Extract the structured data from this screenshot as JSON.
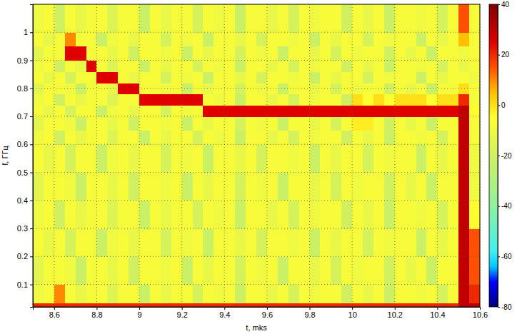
{
  "chart_data": {
    "type": "heatmap",
    "x_label": "t, mks",
    "y_label": "f, ГГц",
    "xlim": [
      8.5,
      10.6
    ],
    "ylim": [
      0.02,
      1.1
    ],
    "xticks": [
      8.6,
      8.8,
      9,
      9.2,
      9.4,
      9.6,
      9.8,
      10,
      10.2,
      10.4,
      10.6
    ],
    "yticks": [
      0.1,
      0.2,
      0.3,
      0.4,
      0.5,
      0.6,
      0.7,
      0.8,
      0.9,
      1
    ],
    "grid": true,
    "x_edges": [
      8.5,
      8.55,
      8.6,
      8.65,
      8.7,
      8.75,
      8.8,
      8.85,
      8.9,
      8.95,
      9,
      9.05,
      9.1,
      9.15,
      9.2,
      9.25,
      9.3,
      9.35,
      9.4,
      9.45,
      9.5,
      9.55,
      9.6,
      9.65,
      9.7,
      9.75,
      9.8,
      9.85,
      9.9,
      9.95,
      10,
      10.05,
      10.1,
      10.15,
      10.2,
      10.25,
      10.3,
      10.35,
      10.4,
      10.45,
      10.5,
      10.55,
      10.6
    ],
    "y_edges": [
      0.02,
      0.035,
      0.1,
      0.2,
      0.3,
      0.4,
      0.5,
      0.6,
      0.65,
      0.7,
      0.74,
      0.78,
      0.82,
      0.86,
      0.9,
      0.95,
      1,
      1.1
    ],
    "cells": [
      [
        20,
        20,
        20,
        20,
        20,
        20,
        20,
        20,
        20,
        20,
        20,
        20,
        20,
        20,
        20,
        20,
        20,
        20,
        20,
        20,
        20,
        20,
        20,
        20,
        20,
        20,
        20,
        20,
        20,
        20,
        20,
        20,
        20,
        20,
        20,
        20,
        20,
        20,
        20,
        20,
        30,
        30
      ],
      [
        -10,
        -8,
        10,
        -8,
        -12,
        -8,
        -8,
        -16,
        -8,
        -8,
        -22,
        -8,
        -12,
        -8,
        -8,
        -18,
        -8,
        -10,
        -8,
        -22,
        -8,
        -8,
        -12,
        -8,
        -18,
        -8,
        -10,
        -8,
        -8,
        -20,
        -8,
        -12,
        -8,
        -22,
        -8,
        -8,
        -10,
        -8,
        -18,
        -8,
        30,
        20
      ],
      [
        -14,
        -8,
        -8,
        -10,
        -22,
        -8,
        -8,
        -12,
        -8,
        -20,
        -8,
        -8,
        -10,
        -8,
        -22,
        -8,
        -12,
        -8,
        -8,
        -18,
        -8,
        -10,
        -8,
        -22,
        -8,
        -8,
        -12,
        -8,
        -18,
        -8,
        -10,
        -8,
        -8,
        -20,
        -8,
        -12,
        -8,
        -22,
        -8,
        -8,
        30,
        15
      ],
      [
        -8,
        -12,
        -8,
        -18,
        -8,
        -8,
        -22,
        -10,
        -8,
        -12,
        -8,
        -8,
        -18,
        -8,
        -10,
        -8,
        -22,
        -8,
        -8,
        -12,
        -8,
        -18,
        -8,
        -8,
        -10,
        -8,
        -22,
        -8,
        -12,
        -8,
        -8,
        -18,
        -8,
        -10,
        -8,
        -8,
        -22,
        -8,
        -12,
        -8,
        30,
        15
      ],
      [
        -10,
        -8,
        -20,
        -8,
        -12,
        -8,
        -8,
        -16,
        -8,
        -8,
        -22,
        -8,
        -12,
        -8,
        -8,
        -18,
        -8,
        -10,
        -8,
        -22,
        -8,
        -8,
        -12,
        -8,
        -18,
        -8,
        -10,
        -8,
        -8,
        -20,
        -8,
        -12,
        -8,
        -22,
        -8,
        -8,
        -10,
        -8,
        -18,
        -8,
        30,
        -5
      ],
      [
        -14,
        -8,
        -8,
        -10,
        -22,
        -8,
        -8,
        -12,
        -8,
        -20,
        -8,
        -8,
        -10,
        -8,
        -22,
        -8,
        -12,
        -8,
        -8,
        -18,
        -8,
        -10,
        -8,
        -22,
        -8,
        -8,
        -12,
        -8,
        -18,
        -8,
        -10,
        -8,
        -8,
        -20,
        -8,
        -12,
        -8,
        -22,
        -8,
        -8,
        30,
        -10
      ],
      [
        -8,
        -12,
        -8,
        -18,
        -8,
        -8,
        -22,
        -10,
        -8,
        -12,
        -8,
        -8,
        -18,
        -8,
        -10,
        -8,
        -22,
        -8,
        -8,
        -12,
        -8,
        -18,
        -8,
        -8,
        -10,
        -8,
        -22,
        -8,
        -12,
        -8,
        -8,
        -18,
        -8,
        -10,
        -8,
        -8,
        -22,
        -8,
        -12,
        -8,
        30,
        -10
      ],
      [
        -10,
        -8,
        -20,
        -8,
        -12,
        -8,
        -8,
        -16,
        -8,
        -8,
        -22,
        -8,
        -12,
        -8,
        -8,
        -18,
        -8,
        -10,
        -8,
        -22,
        -8,
        -8,
        -12,
        -8,
        -18,
        -8,
        -10,
        -8,
        -8,
        -20,
        -8,
        -12,
        -8,
        -22,
        -8,
        -8,
        -10,
        -8,
        -18,
        -8,
        30,
        -8
      ],
      [
        -14,
        -8,
        -8,
        -10,
        -22,
        -8,
        -8,
        -12,
        -8,
        -20,
        -8,
        -8,
        -10,
        -8,
        -22,
        -8,
        -12,
        -8,
        -8,
        -18,
        -8,
        -10,
        -8,
        -22,
        -8,
        -8,
        -12,
        -8,
        -18,
        -8,
        -2,
        -2,
        -8,
        -20,
        -8,
        -12,
        -8,
        -22,
        -8,
        -8,
        30,
        -8
      ],
      [
        -8,
        -12,
        -8,
        -18,
        -8,
        -8,
        -22,
        -10,
        -8,
        -12,
        -8,
        -8,
        -18,
        -8,
        -10,
        -8,
        25,
        25,
        25,
        25,
        25,
        25,
        25,
        25,
        25,
        25,
        25,
        25,
        25,
        25,
        25,
        25,
        25,
        25,
        25,
        25,
        25,
        25,
        25,
        25,
        30,
        -5
      ],
      [
        -10,
        -8,
        -20,
        -8,
        -12,
        -8,
        -8,
        -16,
        -8,
        -8,
        25,
        25,
        25,
        25,
        25,
        25,
        -8,
        -10,
        -8,
        -22,
        -8,
        -8,
        -12,
        -8,
        -18,
        -8,
        -10,
        -8,
        -8,
        -20,
        0,
        -5,
        0,
        -5,
        0,
        0,
        0,
        -5,
        0,
        0,
        20,
        -8
      ],
      [
        -14,
        -8,
        -8,
        -10,
        -22,
        -8,
        -8,
        -12,
        25,
        25,
        -8,
        -8,
        -10,
        -8,
        -22,
        -8,
        -12,
        -8,
        -8,
        -18,
        -8,
        -10,
        -8,
        -22,
        -8,
        -8,
        -12,
        -8,
        -18,
        -8,
        -10,
        -8,
        -8,
        -20,
        -8,
        -12,
        -8,
        -22,
        -8,
        -8,
        0,
        -8
      ],
      [
        -8,
        -12,
        -8,
        -18,
        -8,
        -8,
        25,
        25,
        -8,
        -12,
        -8,
        -8,
        -18,
        -8,
        -10,
        -8,
        -22,
        -8,
        -8,
        -12,
        -8,
        -18,
        -8,
        -8,
        -10,
        -8,
        -22,
        -8,
        -12,
        -8,
        -8,
        -18,
        -8,
        -10,
        -8,
        -8,
        -22,
        -8,
        -12,
        -8,
        -8,
        -10
      ],
      [
        -10,
        -8,
        -20,
        -8,
        -12,
        25,
        -8,
        -16,
        -8,
        -8,
        -22,
        -8,
        -12,
        -8,
        -8,
        -18,
        -8,
        -10,
        -8,
        -22,
        -8,
        -8,
        -12,
        -8,
        -18,
        -8,
        -10,
        -8,
        -8,
        -20,
        -8,
        -12,
        -8,
        -22,
        -8,
        -8,
        -10,
        -8,
        -18,
        -8,
        -12,
        -8
      ],
      [
        -14,
        -8,
        -8,
        25,
        25,
        -8,
        -8,
        -12,
        -8,
        -20,
        -8,
        -8,
        -10,
        -8,
        -22,
        -8,
        -12,
        -8,
        -8,
        -18,
        -8,
        -10,
        -8,
        -22,
        -8,
        -8,
        -12,
        -8,
        -18,
        -8,
        -10,
        -8,
        -8,
        -20,
        -8,
        -12,
        -8,
        -22,
        -8,
        -8,
        -10,
        -8
      ],
      [
        -8,
        -12,
        -8,
        10,
        -8,
        -8,
        -22,
        -10,
        -8,
        -12,
        -8,
        -8,
        -18,
        -8,
        -10,
        -8,
        -22,
        -8,
        -8,
        -12,
        -8,
        -18,
        -8,
        -8,
        -10,
        -8,
        -22,
        -8,
        -12,
        -8,
        -8,
        -18,
        -8,
        -10,
        -8,
        -8,
        -22,
        -8,
        -12,
        -8,
        5,
        -8
      ],
      [
        -10,
        -8,
        -20,
        -8,
        -12,
        -8,
        -8,
        -16,
        -8,
        -8,
        -22,
        -8,
        -12,
        -8,
        -8,
        -18,
        -8,
        -10,
        -8,
        -22,
        -8,
        -8,
        -12,
        -8,
        -18,
        -8,
        -10,
        -8,
        -8,
        -20,
        -8,
        -12,
        -8,
        -22,
        -8,
        -8,
        -10,
        -8,
        -18,
        -8,
        15,
        -8
      ]
    ],
    "colorbar": {
      "range": [
        -80,
        40
      ],
      "ticks": [
        -80,
        -60,
        -40,
        -20,
        0,
        20,
        40
      ]
    }
  }
}
